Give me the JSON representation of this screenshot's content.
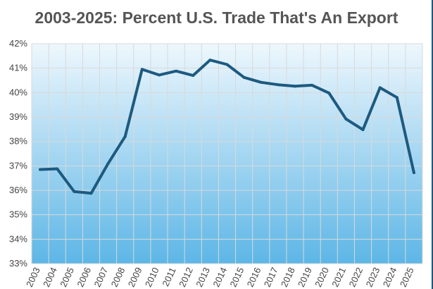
{
  "chart_data": {
    "type": "line",
    "title": "2003-2025: Percent U.S. Trade That's An Export",
    "xlabel": "",
    "ylabel": "",
    "x": [
      "2003",
      "2004",
      "2005",
      "2006",
      "2007",
      "2008",
      "2009",
      "2010",
      "2011",
      "2012",
      "2013",
      "2014",
      "2015",
      "2016",
      "2017",
      "2018",
      "2019",
      "2020",
      "2021",
      "2022",
      "2023",
      "2024",
      "2025"
    ],
    "series": [
      {
        "values": [
          36.85,
          36.88,
          35.95,
          35.88,
          37.1,
          38.2,
          40.95,
          40.72,
          40.88,
          40.7,
          41.33,
          41.15,
          40.62,
          40.42,
          40.32,
          40.26,
          40.3,
          39.98,
          38.92,
          38.48,
          40.2,
          39.8,
          36.72
        ]
      }
    ],
    "ylim": [
      33,
      42
    ],
    "yticks": [
      33,
      34,
      35,
      36,
      37,
      38,
      39,
      40,
      41,
      42
    ],
    "ytick_format": "{v}%",
    "grid": true,
    "legend": "none",
    "colors": {
      "line": "#1d5a80",
      "plot_bg_top": "#eef7fd",
      "plot_bg_bottom": "#5db6e6",
      "grid": "#d9d9d9",
      "title": "#555555"
    }
  }
}
